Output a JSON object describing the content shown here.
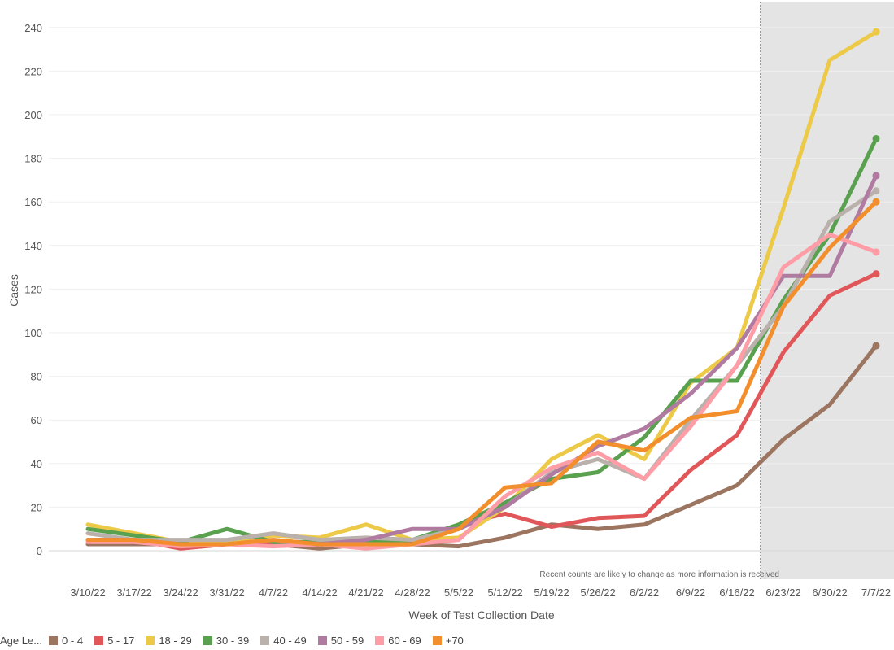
{
  "chart_data": {
    "type": "line",
    "title": "",
    "xlabel": "Week of Test Collection Date",
    "ylabel": "Cases",
    "ylim": [
      -15,
      250
    ],
    "yticks": [
      0,
      20,
      40,
      60,
      80,
      100,
      120,
      140,
      160,
      180,
      200,
      220,
      240
    ],
    "grid": true,
    "categories": [
      "3/10/22",
      "3/17/22",
      "3/24/22",
      "3/31/22",
      "4/7/22",
      "4/14/22",
      "4/21/22",
      "4/28/22",
      "5/5/22",
      "5/12/22",
      "5/19/22",
      "5/26/22",
      "6/2/22",
      "6/9/22",
      "6/16/22",
      "6/23/22",
      "6/30/22",
      "7/7/22"
    ],
    "shaded_from": "6/23/22",
    "annotation": "Recent counts are likely to change as more information is received",
    "legend": {
      "title": "Age Le...",
      "placement": "bottom-left"
    },
    "series": [
      {
        "name": "0 - 4",
        "color": "#9c7560",
        "values": [
          3,
          3,
          3,
          3,
          3,
          1,
          3,
          3,
          2,
          6,
          12,
          10,
          12,
          21,
          30,
          51,
          67,
          94
        ]
      },
      {
        "name": "5 - 17",
        "color": "#e15759",
        "values": [
          5,
          5,
          1,
          3,
          4,
          4,
          4,
          4,
          12,
          17,
          11,
          15,
          16,
          37,
          53,
          91,
          117,
          127
        ]
      },
      {
        "name": "18 - 29",
        "color": "#edc948",
        "values": [
          12,
          8,
          4,
          4,
          7,
          6,
          12,
          5,
          6,
          20,
          42,
          53,
          42,
          77,
          93,
          157,
          225,
          238
        ]
      },
      {
        "name": "30 - 39",
        "color": "#59a14f",
        "values": [
          10,
          7,
          4,
          10,
          4,
          4,
          4,
          5,
          12,
          22,
          33,
          36,
          52,
          78,
          78,
          115,
          145,
          189
        ]
      },
      {
        "name": "40 - 49",
        "color": "#bab0ac",
        "values": [
          8,
          5,
          5,
          5,
          8,
          5,
          6,
          5,
          10,
          20,
          36,
          42,
          33,
          60,
          85,
          112,
          151,
          165
        ]
      },
      {
        "name": "50 - 59",
        "color": "#b07aa1",
        "values": [
          5,
          5,
          3,
          3,
          5,
          3,
          5,
          10,
          10,
          20,
          35,
          48,
          56,
          72,
          93,
          126,
          126,
          172
        ]
      },
      {
        "name": "60 - 69",
        "color": "#ff9da7",
        "values": [
          4,
          4,
          2,
          3,
          2,
          3,
          1,
          3,
          5,
          25,
          38,
          45,
          33,
          57,
          85,
          130,
          145,
          137
        ]
      },
      {
        "name": "+70",
        "color": "#f28e2b",
        "values": [
          5,
          5,
          3,
          3,
          5,
          3,
          3,
          3,
          10,
          29,
          31,
          50,
          46,
          61,
          64,
          112,
          139,
          160
        ]
      }
    ]
  }
}
